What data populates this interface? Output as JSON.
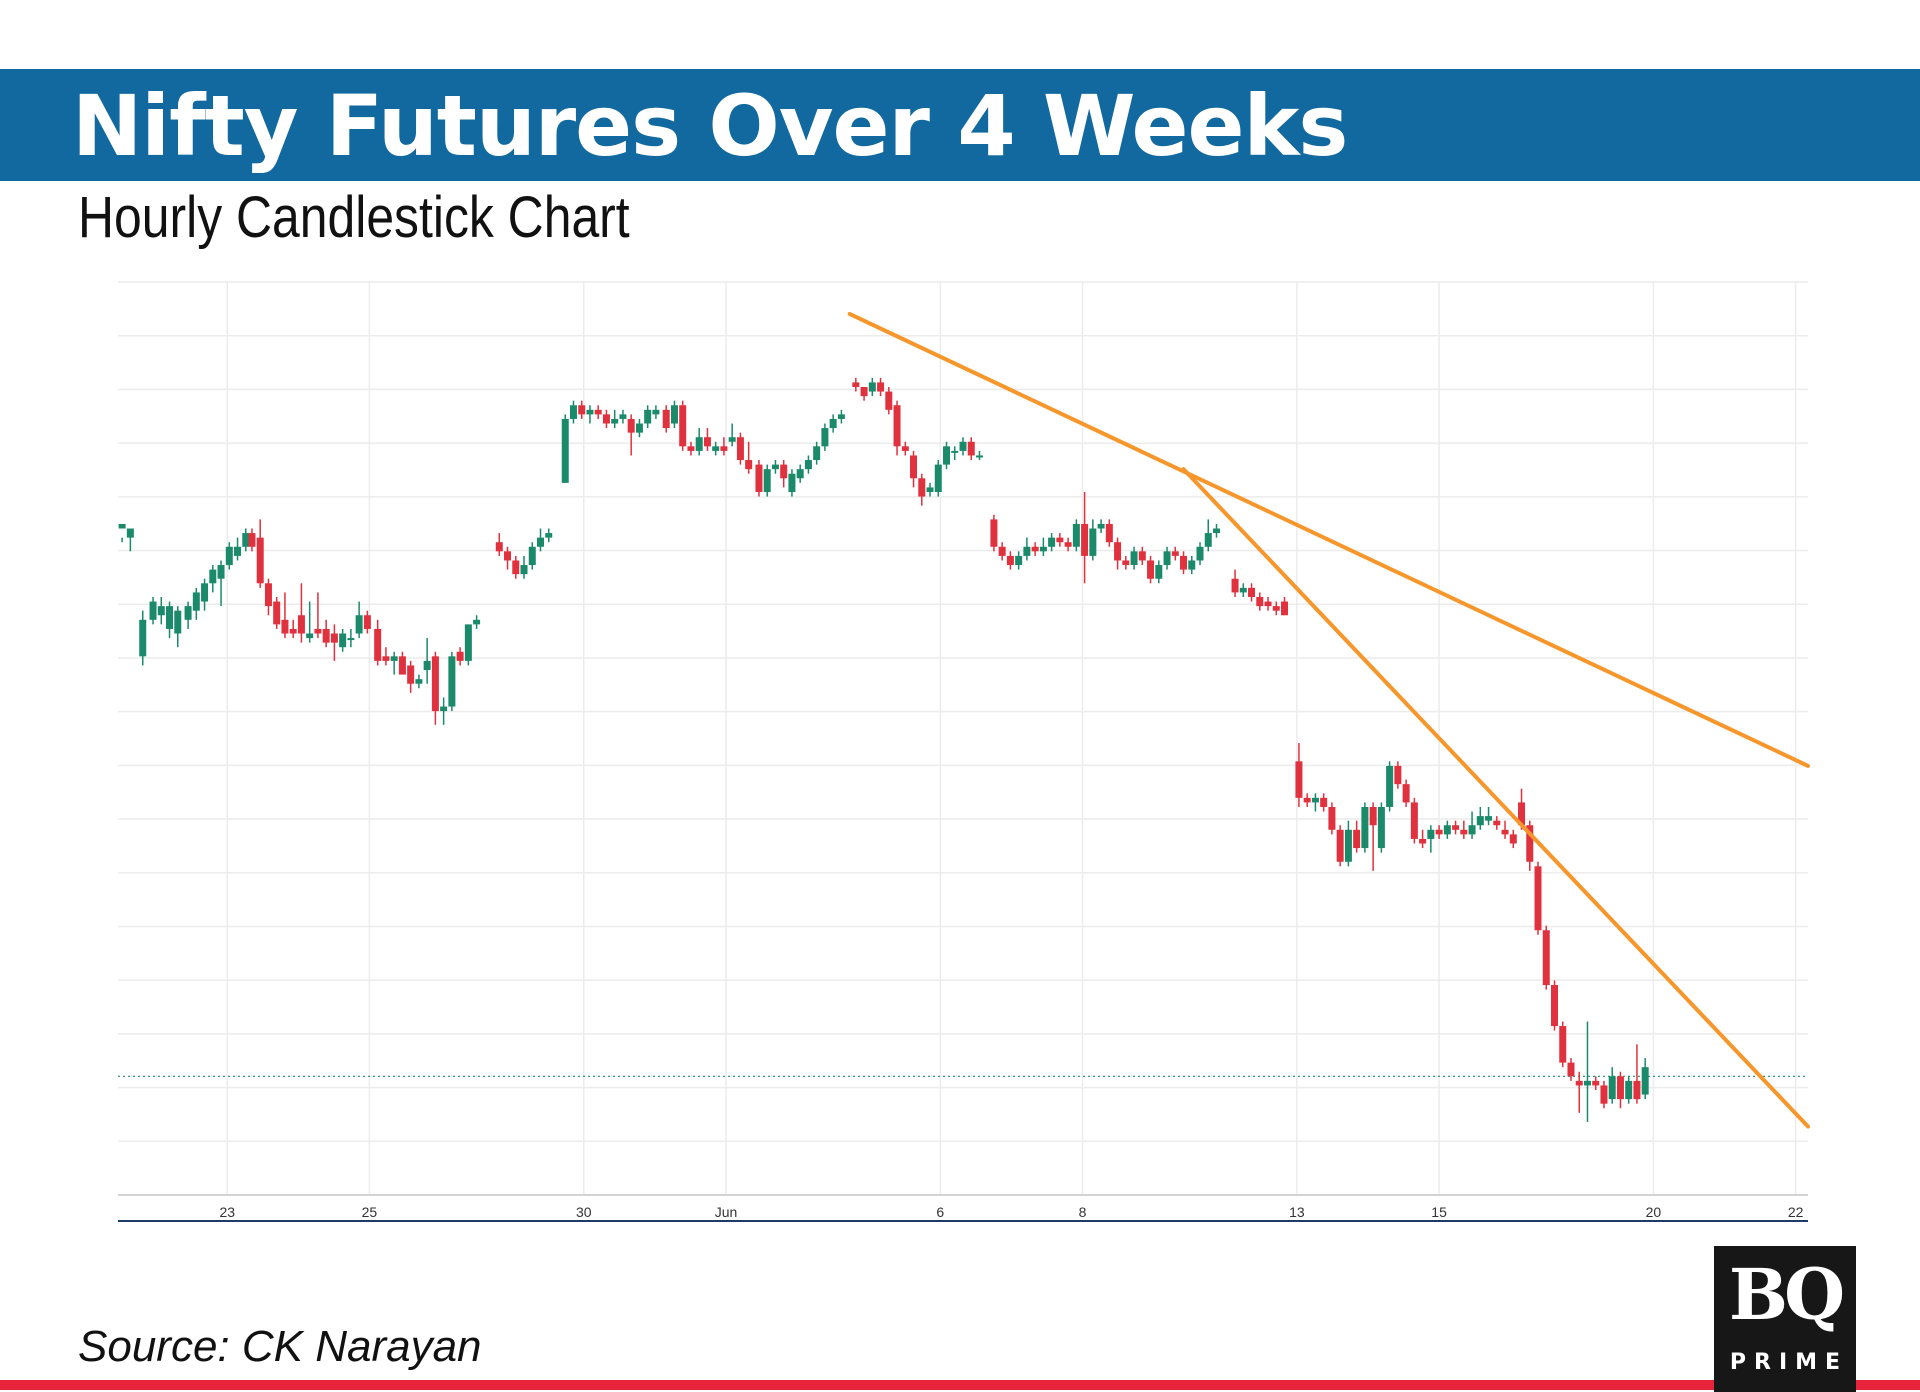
{
  "header": {
    "title": "Nifty Futures Over 4 Weeks",
    "subtitle": "Hourly Candlestick Chart"
  },
  "footer": {
    "source": "Source: CK Narayan"
  },
  "logo": {
    "mark": "BQ",
    "word": "PRIME"
  },
  "colors": {
    "banner": "#1169a0",
    "up": "#1a8a6b",
    "down": "#e0313e",
    "trendline": "#f7962b",
    "rule": "#e8233c"
  },
  "chart_data": {
    "type": "candlestick",
    "title": "",
    "xlabel": "",
    "ylabel": "",
    "y_axis_labels_visible": false,
    "grid": true,
    "x_ticks": [
      "23",
      "25",
      "30",
      "Jun",
      "6",
      "8",
      "13",
      "15",
      "20",
      "22"
    ],
    "x_tick_positions": [
      5.3,
      12.2,
      22.6,
      29.5,
      39.9,
      46.8,
      57.2,
      64.1,
      74.5,
      81.4
    ],
    "xlim": [
      0,
      82
    ],
    "ylim": [
      0,
      100
    ],
    "current_price_line": 13,
    "candles": [
      [
        0.2,
        73,
        73.5,
        71.5,
        72
      ],
      [
        0.6,
        72,
        73,
        72.5,
        70.5
      ],
      [
        1.2,
        59,
        63,
        64,
        58
      ],
      [
        1.7,
        63,
        65,
        65.5,
        62.5
      ],
      [
        2.1,
        63.5,
        64.5,
        65.5,
        62.5
      ],
      [
        2.5,
        62,
        64.5,
        65,
        61
      ],
      [
        2.9,
        61.5,
        64,
        64.5,
        60
      ],
      [
        3.4,
        63,
        64.5,
        65,
        62
      ],
      [
        3.8,
        64,
        66,
        66.5,
        63
      ],
      [
        4.2,
        65,
        67,
        67.5,
        64
      ],
      [
        4.6,
        67,
        68.5,
        69,
        66
      ],
      [
        5.0,
        67.5,
        69,
        69.5,
        64.5
      ],
      [
        5.4,
        69,
        71,
        71.5,
        68.5
      ],
      [
        5.8,
        70,
        71,
        72,
        69.5
      ],
      [
        6.2,
        71,
        72.5,
        73,
        70.5
      ],
      [
        6.5,
        72.5,
        71,
        73,
        70.5
      ],
      [
        6.9,
        72,
        67,
        74,
        66.5
      ],
      [
        7.3,
        67,
        64.5,
        67.5,
        63.5
      ],
      [
        7.7,
        65,
        62.5,
        65.5,
        62
      ],
      [
        8.1,
        63,
        61.5,
        66,
        61
      ],
      [
        8.5,
        62,
        61.5,
        63,
        61
      ],
      [
        8.9,
        63.5,
        61.5,
        67,
        60.5
      ],
      [
        9.3,
        61,
        61.5,
        65,
        60.5
      ],
      [
        9.7,
        62,
        61.5,
        66,
        61
      ],
      [
        10.1,
        62,
        60.5,
        63,
        60
      ],
      [
        10.5,
        61.5,
        60.5,
        62.5,
        58.5
      ],
      [
        10.9,
        60,
        61.5,
        62,
        59.5
      ],
      [
        11.3,
        61,
        61,
        62,
        60
      ],
      [
        11.7,
        61.5,
        63.5,
        65,
        61
      ],
      [
        12.1,
        63.5,
        62,
        64,
        61.5
      ],
      [
        12.6,
        62,
        58.5,
        63,
        58
      ],
      [
        13.0,
        59,
        58.5,
        60,
        58
      ],
      [
        13.4,
        58.5,
        59,
        59.5,
        57
      ],
      [
        13.8,
        59,
        57,
        59.5,
        57.5
      ],
      [
        14.2,
        58,
        56,
        58.5,
        55
      ],
      [
        14.6,
        56,
        56.5,
        57,
        55.5
      ],
      [
        15.0,
        57.5,
        58.5,
        61,
        56
      ],
      [
        15.4,
        59,
        53,
        59.5,
        51.5
      ],
      [
        15.8,
        53,
        53.5,
        54.5,
        51.5
      ],
      [
        16.2,
        53.5,
        59,
        59.5,
        53
      ],
      [
        16.6,
        59.5,
        58.5,
        60,
        58
      ],
      [
        17.0,
        58.5,
        62.5,
        62,
        58
      ],
      [
        17.4,
        62.5,
        63,
        63.5,
        62
      ],
      [
        18.5,
        71.5,
        70.5,
        72.5,
        70
      ],
      [
        18.9,
        70.5,
        69.5,
        71,
        68.5
      ],
      [
        19.3,
        69.5,
        68,
        70,
        67.5
      ],
      [
        19.7,
        68,
        69,
        70,
        67.5
      ],
      [
        20.1,
        69,
        71,
        71.5,
        68.5
      ],
      [
        20.5,
        71,
        72,
        73,
        70.5
      ],
      [
        20.9,
        72,
        72.5,
        73,
        71.5
      ],
      [
        21.7,
        78,
        85,
        85.5,
        78
      ],
      [
        22.1,
        85,
        86.5,
        87,
        84.5
      ],
      [
        22.5,
        86.5,
        85.5,
        87,
        85
      ],
      [
        22.9,
        85.5,
        86,
        86.5,
        84.5
      ],
      [
        23.3,
        86,
        85.5,
        86.5,
        85
      ],
      [
        23.7,
        85.5,
        84.5,
        86,
        84
      ],
      [
        24.1,
        84.5,
        85,
        86,
        84
      ],
      [
        24.5,
        85,
        85.5,
        86,
        84.5
      ],
      [
        24.9,
        85,
        83.5,
        85.5,
        81
      ],
      [
        25.3,
        83.5,
        84.5,
        85,
        83
      ],
      [
        25.7,
        84.5,
        86,
        86.5,
        84
      ],
      [
        26.1,
        85.5,
        86,
        86.5,
        85
      ],
      [
        26.6,
        86,
        84,
        86.5,
        83.5
      ],
      [
        27.0,
        84.5,
        86.5,
        87,
        84
      ],
      [
        27.4,
        86.5,
        82,
        87,
        81.5
      ],
      [
        27.8,
        82,
        81.5,
        82.5,
        81
      ],
      [
        28.2,
        81.5,
        83,
        84,
        81
      ],
      [
        28.6,
        83,
        82,
        84,
        81.5
      ],
      [
        29.0,
        81.5,
        82,
        82.5,
        81
      ],
      [
        29.4,
        82,
        81.5,
        83,
        81
      ],
      [
        29.8,
        82.5,
        83,
        84.5,
        82
      ],
      [
        30.2,
        83,
        80.5,
        83.5,
        80
      ],
      [
        30.6,
        80.5,
        79.5,
        82.5,
        79
      ],
      [
        31.1,
        80,
        77,
        80.5,
        76.5
      ],
      [
        31.5,
        77,
        79.5,
        80,
        76.5
      ],
      [
        31.9,
        79.5,
        80,
        80.5,
        79
      ],
      [
        32.3,
        80,
        78.5,
        80.5,
        77.5
      ],
      [
        32.7,
        77,
        79,
        79.5,
        76.5
      ],
      [
        33.1,
        78.5,
        79.5,
        80,
        78
      ],
      [
        33.5,
        79.5,
        80.5,
        81,
        79
      ],
      [
        33.9,
        80.5,
        82,
        82.5,
        80
      ],
      [
        34.3,
        82,
        84,
        84.5,
        81.5
      ],
      [
        34.7,
        84,
        85,
        85.5,
        83.5
      ],
      [
        35.1,
        85,
        85.5,
        86,
        84.5
      ],
      [
        35.8,
        89,
        88.5,
        89.5,
        88
      ],
      [
        36.2,
        88.5,
        87.5,
        88.5,
        87
      ],
      [
        36.6,
        88,
        89,
        89.5,
        87.5
      ],
      [
        37.0,
        89,
        88,
        89.5,
        87.5
      ],
      [
        37.4,
        88,
        86,
        88.5,
        85.5
      ],
      [
        37.8,
        86.5,
        82,
        87,
        81
      ],
      [
        38.2,
        82,
        81.5,
        82.5,
        81
      ],
      [
        38.6,
        81,
        78.5,
        81.5,
        77.5
      ],
      [
        39.0,
        78.5,
        76.5,
        79,
        75.5
      ],
      [
        39.4,
        77,
        77.5,
        78,
        76.5
      ],
      [
        39.8,
        77,
        80,
        80.5,
        76.5
      ],
      [
        40.2,
        80,
        82,
        82.5,
        79.5
      ],
      [
        40.6,
        81.5,
        81.5,
        82,
        80.5
      ],
      [
        41.0,
        81.5,
        82.5,
        83,
        81
      ],
      [
        41.4,
        82.5,
        81,
        83,
        80.5
      ],
      [
        41.8,
        81,
        81,
        81.5,
        80.5
      ],
      [
        42.5,
        74,
        71,
        74.5,
        70.5
      ],
      [
        42.9,
        71,
        70,
        71.5,
        69.5
      ],
      [
        43.3,
        70,
        69,
        70.5,
        68.5
      ],
      [
        43.7,
        69,
        70,
        70.5,
        68.5
      ],
      [
        44.1,
        70,
        71,
        72,
        69.5
      ],
      [
        44.5,
        71,
        70.5,
        71.5,
        70
      ],
      [
        44.9,
        70.5,
        71,
        72,
        70
      ],
      [
        45.3,
        71,
        72,
        72.5,
        70.5
      ],
      [
        45.7,
        72,
        71.5,
        72.5,
        71
      ],
      [
        46.1,
        71.5,
        71,
        72,
        70.5
      ],
      [
        46.5,
        71,
        73.5,
        74,
        70.5
      ],
      [
        46.9,
        73.5,
        70,
        77,
        67
      ],
      [
        47.3,
        70,
        73,
        74,
        69.5
      ],
      [
        47.7,
        73,
        73.5,
        74,
        72.5
      ],
      [
        48.1,
        73.5,
        71.5,
        74,
        71
      ],
      [
        48.5,
        71.5,
        69.5,
        72,
        68.5
      ],
      [
        48.9,
        69.5,
        69,
        70,
        68.5
      ],
      [
        49.3,
        69,
        70.5,
        71,
        68.5
      ],
      [
        49.7,
        70.5,
        69.5,
        71,
        69
      ],
      [
        50.1,
        69.5,
        67.5,
        70,
        67
      ],
      [
        50.5,
        67.5,
        69,
        69.5,
        67
      ],
      [
        50.9,
        69,
        70.5,
        71,
        68.5
      ],
      [
        51.3,
        70.5,
        70,
        71,
        69.5
      ],
      [
        51.7,
        70,
        68.5,
        70.5,
        68
      ],
      [
        52.1,
        68.5,
        69.5,
        70,
        68
      ],
      [
        52.5,
        69.5,
        71,
        71.5,
        69
      ],
      [
        52.9,
        71,
        72.5,
        74,
        70.5
      ],
      [
        53.3,
        72.5,
        73,
        73.5,
        72
      ],
      [
        54.2,
        67.5,
        66,
        68.5,
        65.5
      ],
      [
        54.6,
        66,
        66.5,
        67,
        65.5
      ],
      [
        55.0,
        66.5,
        65.5,
        67,
        65
      ],
      [
        55.4,
        65.5,
        64.5,
        66,
        64
      ],
      [
        55.8,
        65,
        64.5,
        65.5,
        64
      ],
      [
        56.2,
        64.5,
        64,
        65,
        63.5
      ],
      [
        56.6,
        65,
        63.5,
        65.5,
        63.5
      ],
      [
        57.3,
        47.5,
        43.5,
        49.5,
        42.5
      ],
      [
        57.7,
        43.5,
        43,
        44,
        42.5
      ],
      [
        58.1,
        43,
        43.5,
        44,
        42
      ],
      [
        58.5,
        43.5,
        42.5,
        44,
        42
      ],
      [
        58.9,
        42.5,
        40,
        43,
        39.5
      ],
      [
        59.3,
        40,
        36.5,
        40.5,
        36
      ],
      [
        59.7,
        36.5,
        40,
        41,
        36
      ],
      [
        60.1,
        40,
        38,
        41,
        37.5
      ],
      [
        60.5,
        38,
        42.5,
        43,
        37.5
      ],
      [
        60.9,
        42.5,
        40.5,
        43,
        35.5
      ],
      [
        61.3,
        38,
        42.5,
        43,
        37.5
      ],
      [
        61.7,
        42.5,
        47,
        47.5,
        42
      ],
      [
        62.1,
        47,
        45,
        47.5,
        44.5
      ],
      [
        62.5,
        45,
        43,
        45.5,
        42.5
      ],
      [
        62.9,
        43,
        39,
        43.5,
        38.5
      ],
      [
        63.3,
        39,
        38.5,
        40,
        38
      ],
      [
        63.7,
        39,
        40,
        40.5,
        37.5
      ],
      [
        64.1,
        40,
        39.5,
        40.5,
        39
      ],
      [
        64.5,
        39.5,
        40.5,
        41,
        39
      ],
      [
        64.9,
        40.5,
        40,
        41,
        39.5
      ],
      [
        65.3,
        40,
        39.5,
        41,
        39
      ],
      [
        65.7,
        39.5,
        40.5,
        42,
        39
      ],
      [
        66.1,
        40.5,
        41.5,
        42.5,
        40
      ],
      [
        66.5,
        41,
        41.5,
        42.5,
        40.5
      ],
      [
        66.9,
        41,
        40.5,
        41.5,
        40
      ],
      [
        67.3,
        40,
        39.5,
        41,
        39
      ],
      [
        67.7,
        39.5,
        38.5,
        40,
        38
      ],
      [
        68.1,
        43,
        40.5,
        44.5,
        40
      ],
      [
        68.5,
        40.5,
        36.5,
        41,
        35.5
      ],
      [
        68.9,
        36,
        29,
        36.5,
        28.5
      ],
      [
        69.3,
        29,
        23,
        29.5,
        22.5
      ],
      [
        69.7,
        23,
        18.5,
        23.5,
        18
      ],
      [
        70.1,
        18.5,
        14.5,
        19,
        14
      ],
      [
        70.5,
        14.5,
        13,
        15,
        12.5
      ],
      [
        70.9,
        12.5,
        12,
        13.5,
        9
      ],
      [
        71.3,
        12,
        12.5,
        19,
        8
      ],
      [
        71.7,
        12.5,
        12,
        13,
        11.5
      ],
      [
        72.1,
        12,
        10,
        12.5,
        9.5
      ],
      [
        72.5,
        10.5,
        13,
        14,
        10
      ],
      [
        72.9,
        13,
        10.5,
        13.5,
        9.5
      ],
      [
        73.3,
        10.5,
        12.5,
        13,
        10
      ],
      [
        73.7,
        12.5,
        10.5,
        16.5,
        10
      ],
      [
        74.1,
        11,
        14,
        15,
        10.5
      ]
    ],
    "trendlines": [
      {
        "from": [
          35.5,
          96.5
        ],
        "to": [
          82,
          47
        ]
      },
      {
        "from": [
          51.7,
          79.5
        ],
        "to": [
          82,
          7.5
        ]
      }
    ]
  }
}
